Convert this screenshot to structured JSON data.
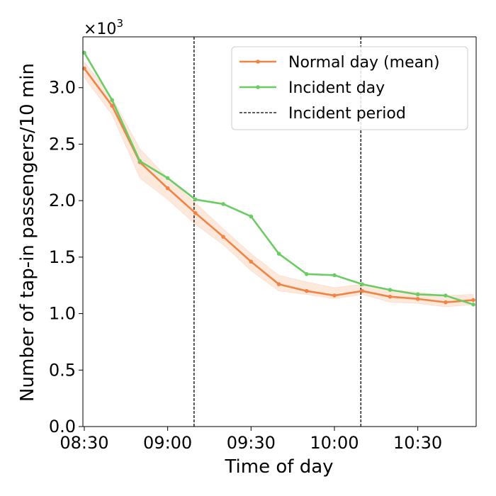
{
  "chart_data": {
    "type": "line",
    "xlabel": "Time of day",
    "ylabel": "Number of tap-in passengers/10 min",
    "scale_prefix": "×10",
    "scale_exponent": "3",
    "x_minutes": [
      0,
      10,
      20,
      30,
      40,
      50,
      60,
      70,
      80,
      90,
      100,
      110,
      120,
      130,
      140
    ],
    "xlim": [
      -0.5,
      141
    ],
    "ylim": [
      0,
      3.45
    ],
    "x_ticks": [
      {
        "value": 0,
        "label": "08:30"
      },
      {
        "value": 30,
        "label": "09:00"
      },
      {
        "value": 60,
        "label": "09:30"
      },
      {
        "value": 90,
        "label": "10:00"
      },
      {
        "value": 120,
        "label": "10:30"
      }
    ],
    "y_ticks": [
      {
        "value": 0.0,
        "label": "0.0"
      },
      {
        "value": 0.5,
        "label": "0.5"
      },
      {
        "value": 1.0,
        "label": "1.0"
      },
      {
        "value": 1.5,
        "label": "1.5"
      },
      {
        "value": 2.0,
        "label": "2.0"
      },
      {
        "value": 2.5,
        "label": "2.5"
      },
      {
        "value": 3.0,
        "label": "3.0"
      }
    ],
    "series": [
      {
        "name": "Normal day (mean)",
        "color": "#ef8445",
        "values": [
          3.17,
          2.84,
          2.34,
          2.11,
          1.89,
          1.68,
          1.46,
          1.26,
          1.2,
          1.16,
          1.2,
          1.15,
          1.13,
          1.1,
          1.12
        ],
        "band_upper": [
          3.23,
          2.91,
          2.46,
          2.2,
          1.98,
          1.75,
          1.53,
          1.34,
          1.28,
          1.23,
          1.26,
          1.21,
          1.19,
          1.16,
          1.17
        ],
        "band_lower": [
          3.09,
          2.76,
          2.2,
          2.01,
          1.79,
          1.61,
          1.38,
          1.2,
          1.17,
          1.13,
          1.17,
          1.1,
          1.09,
          1.06,
          1.08
        ],
        "band_color": "#fcd9c4"
      },
      {
        "name": "Incident day",
        "color": "#6ccc64",
        "values": [
          3.31,
          2.89,
          2.35,
          2.2,
          2.01,
          1.97,
          1.86,
          1.53,
          1.35,
          1.34,
          1.26,
          1.21,
          1.17,
          1.16,
          1.08
        ]
      }
    ],
    "incident_lines": [
      39.5,
      99.5
    ],
    "incident_label": "Incident period",
    "legend_position": "top-right"
  }
}
